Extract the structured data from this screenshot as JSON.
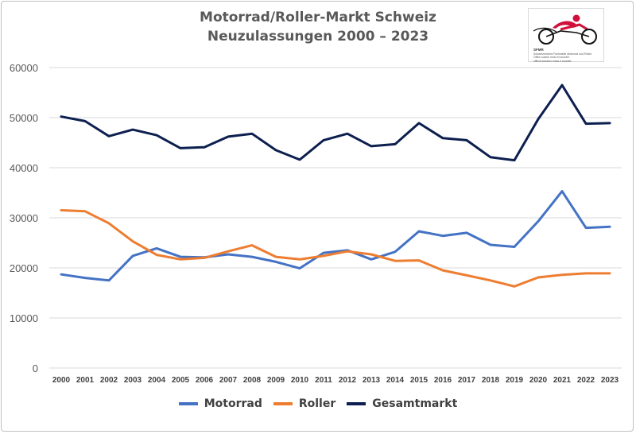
{
  "chart_data": {
    "type": "line",
    "title": "Motorrad/Roller-Markt Schweiz",
    "subtitle": "Neuzulassungen 2000 – 2023",
    "x": [
      "2000",
      "2001",
      "2002",
      "2003",
      "2004",
      "2005",
      "2006",
      "2007",
      "2008",
      "2009",
      "2010",
      "2011",
      "2012",
      "2013",
      "2014",
      "2015",
      "2016",
      "2017",
      "2018",
      "2019",
      "2020",
      "2021",
      "2022",
      "2023"
    ],
    "ylim": [
      0,
      60000
    ],
    "yticks": [
      "0",
      "10000",
      "20000",
      "30000",
      "40000",
      "50000",
      "60000"
    ],
    "grid": true,
    "legend_position": "bottom",
    "series": [
      {
        "name": "Motorrad",
        "color": "#4472c4",
        "values": [
          18700,
          18000,
          17500,
          22400,
          23900,
          22200,
          22100,
          22700,
          22200,
          21200,
          19900,
          23000,
          23500,
          21700,
          23200,
          27300,
          26400,
          27000,
          24600,
          24200,
          29300,
          35300,
          28000,
          28200
        ]
      },
      {
        "name": "Roller",
        "color": "#ed7d31",
        "values": [
          31500,
          31300,
          28900,
          25300,
          22600,
          21700,
          22000,
          23300,
          24500,
          22200,
          21700,
          22400,
          23300,
          22700,
          21400,
          21500,
          19500,
          18500,
          17500,
          16300,
          18100,
          18600,
          18900,
          18900
        ]
      },
      {
        "name": "Gesamtmarkt",
        "color": "#0c1f4f",
        "values": [
          50200,
          49300,
          46300,
          47600,
          46500,
          43900,
          44100,
          46200,
          46800,
          43500,
          41600,
          45500,
          46800,
          44300,
          44700,
          48900,
          45900,
          45500,
          42100,
          41500,
          49700,
          56500,
          48800,
          48900
        ]
      }
    ]
  },
  "logo": {
    "brand": "SFMR",
    "lines": [
      "Schweizerische Fachstelle Motorrad und Roller",
      "Office suisse moto et scooter",
      "Ufficio svizzero moto e scooter"
    ]
  }
}
